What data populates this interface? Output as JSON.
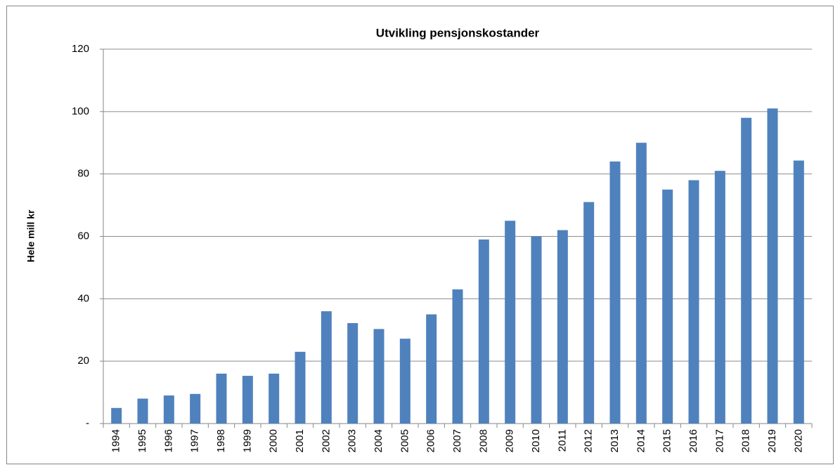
{
  "chart_data": {
    "type": "bar",
    "title": "Utvikling pensjonskostander",
    "y_label": "Hele mill kr",
    "categories": [
      "1994",
      "1995",
      "1996",
      "1997",
      "1998",
      "1999",
      "2000",
      "2001",
      "2002",
      "2003",
      "2004",
      "2005",
      "2006",
      "2007",
      "2008",
      "2009",
      "2010",
      "2011",
      "2012",
      "2013",
      "2014",
      "2015",
      "2016",
      "2017",
      "2018",
      "2019",
      "2020"
    ],
    "values": [
      5,
      8,
      9,
      9.5,
      16,
      15.3,
      16,
      23,
      36,
      32.2,
      30.3,
      27.2,
      35,
      43,
      59,
      65,
      60,
      62,
      71,
      84,
      90,
      75,
      78,
      81,
      98,
      101,
      84.3
    ],
    "color": "#4f81bd",
    "ylim": [
      0,
      120
    ],
    "yticks": [
      {
        "value": 0,
        "label": "-"
      },
      20,
      40,
      60,
      80,
      100,
      120
    ],
    "grid": true
  }
}
